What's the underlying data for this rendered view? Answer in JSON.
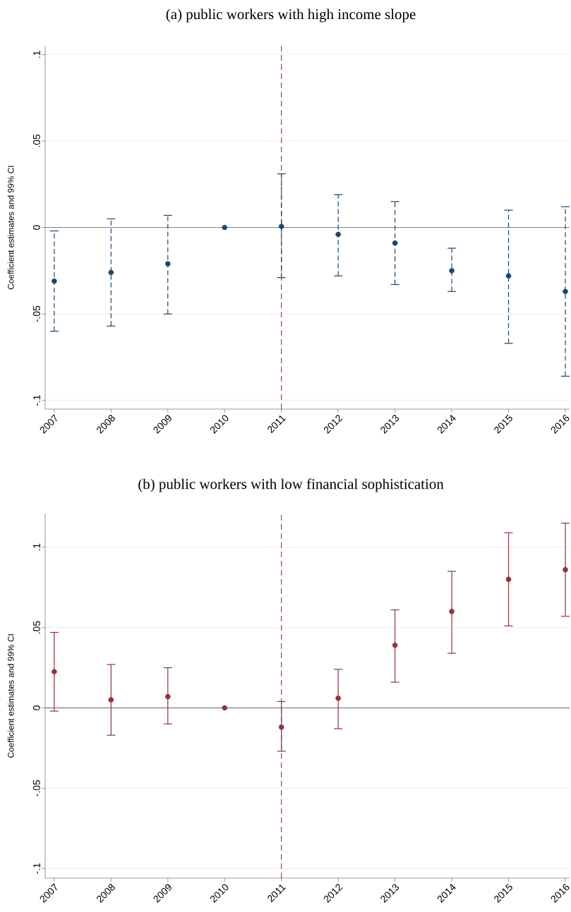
{
  "chart_data": [
    {
      "type": "scatter",
      "title": "(a) public workers with high income slope",
      "ylabel": "Coefficient estimates and 99% CI",
      "categories": [
        "2007",
        "2008",
        "2009",
        "2010",
        "2011",
        "2012",
        "2013",
        "2014",
        "2015",
        "2016"
      ],
      "series": [
        {
          "color": "#1a476f",
          "line_style": "dashed",
          "values": [
            -0.031,
            -0.026,
            -0.021,
            0,
            0.0006,
            -0.004,
            -0.009,
            -0.025,
            -0.028,
            -0.037
          ],
          "errors": [
            [
              -0.06,
              -0.002
            ],
            [
              -0.057,
              0.005
            ],
            [
              -0.05,
              0.007
            ],
            null,
            [
              -0.029,
              0.031
            ],
            [
              -0.028,
              0.019
            ],
            [
              -0.033,
              0.015
            ],
            [
              -0.037,
              -0.012
            ],
            [
              -0.067,
              0.01
            ],
            [
              -0.086,
              0.012
            ]
          ]
        }
      ],
      "ylim": [
        -0.105,
        0.105
      ],
      "yticks": [
        {
          "value": -0.1,
          "label": "-.1"
        },
        {
          "value": -0.05,
          "label": "-.05"
        },
        0,
        {
          "value": 0.05,
          "label": ".05"
        },
        {
          "value": 0.1,
          "label": ".1"
        }
      ],
      "ref_lines": [
        {
          "axis": "y",
          "value": 0,
          "color": "#808080",
          "line_style": "solid"
        },
        {
          "axis": "x",
          "value": "2011",
          "color": "#d4254a",
          "line_style": "dashed"
        }
      ],
      "grid": "y",
      "marker": "circle"
    },
    {
      "type": "scatter",
      "title": "(b) public workers with low financial sophistication",
      "ylabel": "Coefficient estimates and 99% CI",
      "categories": [
        "2007",
        "2008",
        "2009",
        "2010",
        "2011",
        "2012",
        "2013",
        "2014",
        "2015",
        "2016"
      ],
      "series": [
        {
          "color": "#90353b",
          "line_style": "solid",
          "values": [
            0.0225,
            0.005,
            0.007,
            0,
            -0.012,
            0.006,
            0.039,
            0.06,
            0.08,
            0.086
          ],
          "errors": [
            [
              -0.002,
              0.047
            ],
            [
              -0.017,
              0.027
            ],
            [
              -0.01,
              0.025
            ],
            null,
            [
              -0.027,
              0.004
            ],
            [
              -0.013,
              0.024
            ],
            [
              0.016,
              0.061
            ],
            [
              0.034,
              0.085
            ],
            [
              0.051,
              0.109
            ],
            [
              0.057,
              0.115
            ]
          ]
        }
      ],
      "ylim": [
        -0.106,
        0.121
      ],
      "yticks": [
        {
          "value": -0.1,
          "label": "-.1"
        },
        {
          "value": -0.05,
          "label": "-.05"
        },
        0,
        {
          "value": 0.05,
          "label": ".05"
        },
        {
          "value": 0.1,
          "label": ".1"
        }
      ],
      "ref_lines": [
        {
          "axis": "y",
          "value": 0,
          "color": "#808080",
          "line_style": "solid"
        },
        {
          "axis": "x",
          "value": "2011",
          "color": "#d4254a",
          "line_style": "dashed"
        }
      ],
      "grid": "y",
      "marker": "circle"
    }
  ]
}
